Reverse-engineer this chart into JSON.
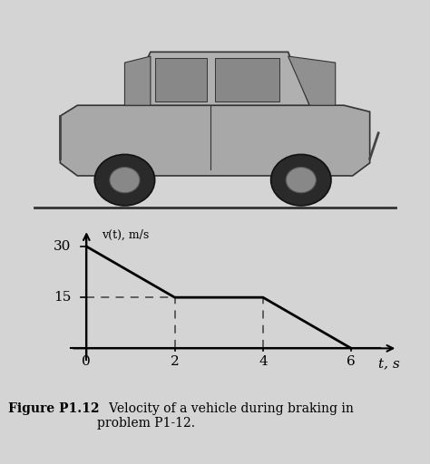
{
  "title_bold": "Figure P1.12",
  "title_normal": "   Velocity of a vehicle during braking in\nproblem P1-12.",
  "ylabel": "v(t), m/s",
  "xlabel": "t, s",
  "bg_color": "#d4d4d4",
  "line_color": "#000000",
  "dashed_color": "#555555",
  "x_data": [
    0,
    2,
    4,
    6
  ],
  "y_data": [
    30,
    15,
    15,
    0
  ],
  "xlim": [
    -0.4,
    7.2
  ],
  "ylim": [
    -4,
    37
  ],
  "xticks": [
    0,
    2,
    4,
    6
  ],
  "yticks": [
    15,
    30
  ],
  "tick_fontsize": 11,
  "label_fontsize": 11,
  "caption_fontsize": 10
}
